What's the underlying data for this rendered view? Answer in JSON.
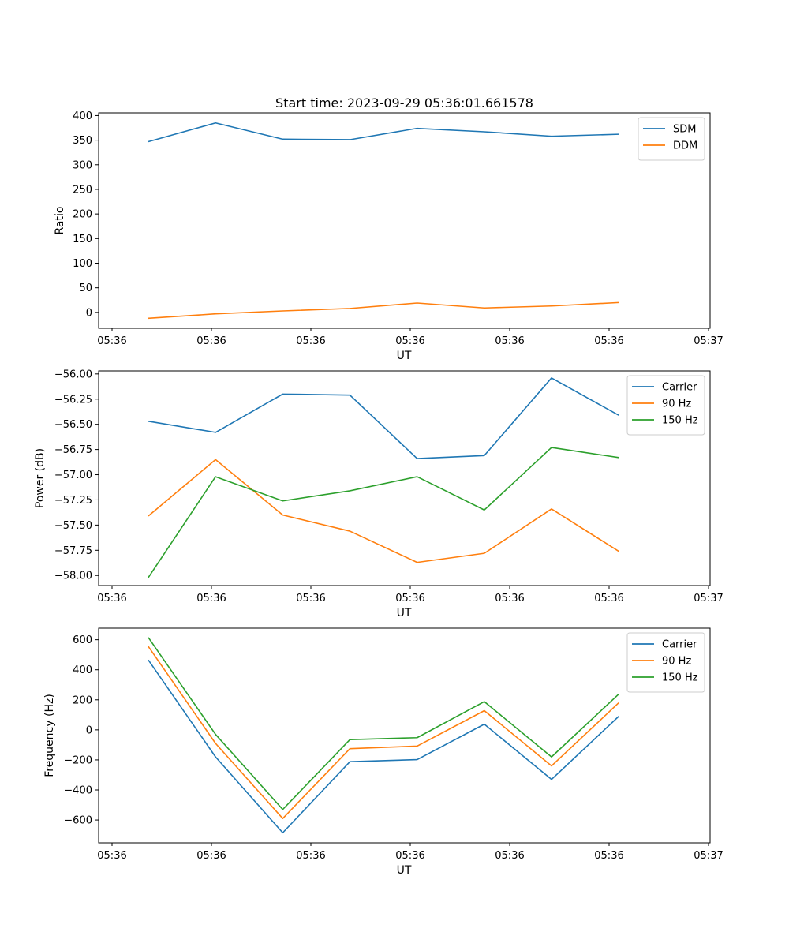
{
  "title": "Start time: 2023-09-29 05:36:01.661578",
  "x_tick_labels": [
    "05:36",
    "05:36",
    "05:36",
    "05:36",
    "05:36",
    "05:36",
    "05:36"
  ],
  "x_tick_last": "05:37",
  "colors": {
    "c0": "#1f77b4",
    "c1": "#ff7f0e",
    "c2": "#2ca02c"
  },
  "chart_data": [
    {
      "type": "line",
      "xlabel": "UT",
      "ylabel": "Ratio",
      "x": [
        1,
        2,
        3,
        4,
        5,
        6,
        7,
        8
      ],
      "xlim": [
        0.26,
        9.36
      ],
      "ylim": [
        -32.3,
        405.5
      ],
      "yticks": [
        0,
        50,
        100,
        150,
        200,
        250,
        300,
        350,
        400
      ],
      "ytick_labels": [
        "0",
        "50",
        "100",
        "150",
        "200",
        "250",
        "300",
        "350",
        "400"
      ],
      "legend": "top-right",
      "series": [
        {
          "name": "SDM",
          "color": "#1f77b4",
          "values": [
            347,
            385,
            352,
            351,
            374,
            367,
            358,
            362
          ]
        },
        {
          "name": "DDM",
          "color": "#ff7f0e",
          "values": [
            -12,
            -3,
            3,
            8,
            19,
            9,
            13,
            20
          ]
        }
      ]
    },
    {
      "type": "line",
      "xlabel": "UT",
      "ylabel": "Power (dB)",
      "x": [
        1,
        2,
        3,
        4,
        5,
        6,
        7,
        8
      ],
      "xlim": [
        0.26,
        9.36
      ],
      "ylim": [
        -58.1,
        -55.97
      ],
      "yticks": [
        -58.0,
        -57.75,
        -57.5,
        -57.25,
        -57.0,
        -56.75,
        -56.5,
        -56.25,
        -56.0
      ],
      "ytick_labels": [
        "−58.00",
        "−57.75",
        "−57.50",
        "−57.25",
        "−57.00",
        "−56.75",
        "−56.50",
        "−56.25",
        "−56.00"
      ],
      "legend": "top-right",
      "series": [
        {
          "name": "Carrier",
          "color": "#1f77b4",
          "values": [
            -56.47,
            -56.58,
            -56.2,
            -56.21,
            -56.84,
            -56.81,
            -56.04,
            -56.41
          ]
        },
        {
          "name": "90 Hz",
          "color": "#ff7f0e",
          "values": [
            -57.41,
            -56.85,
            -57.4,
            -57.56,
            -57.87,
            -57.78,
            -57.34,
            -57.76
          ]
        },
        {
          "name": "150 Hz",
          "color": "#2ca02c",
          "values": [
            -58.02,
            -57.02,
            -57.26,
            -57.16,
            -57.02,
            -57.35,
            -56.73,
            -56.83
          ]
        }
      ]
    },
    {
      "type": "line",
      "xlabel": "UT",
      "ylabel": "Frequency (Hz)",
      "x": [
        1,
        2,
        3,
        4,
        5,
        6,
        7,
        8
      ],
      "xlim": [
        0.26,
        9.36
      ],
      "ylim": [
        -752,
        677
      ],
      "yticks": [
        -600,
        -400,
        -200,
        0,
        200,
        400,
        600
      ],
      "ytick_labels": [
        "−600",
        "−400",
        "−200",
        "0",
        "200",
        "400",
        "600"
      ],
      "legend": "top-right",
      "series": [
        {
          "name": "Carrier",
          "color": "#1f77b4",
          "values": [
            465,
            -180,
            -685,
            -212,
            -198,
            38,
            -330,
            90
          ]
        },
        {
          "name": "90 Hz",
          "color": "#ff7f0e",
          "values": [
            555,
            -90,
            -590,
            -125,
            -108,
            128,
            -240,
            180
          ]
        },
        {
          "name": "150 Hz",
          "color": "#2ca02c",
          "values": [
            615,
            -30,
            -530,
            -65,
            -52,
            188,
            -180,
            238
          ]
        }
      ]
    }
  ]
}
